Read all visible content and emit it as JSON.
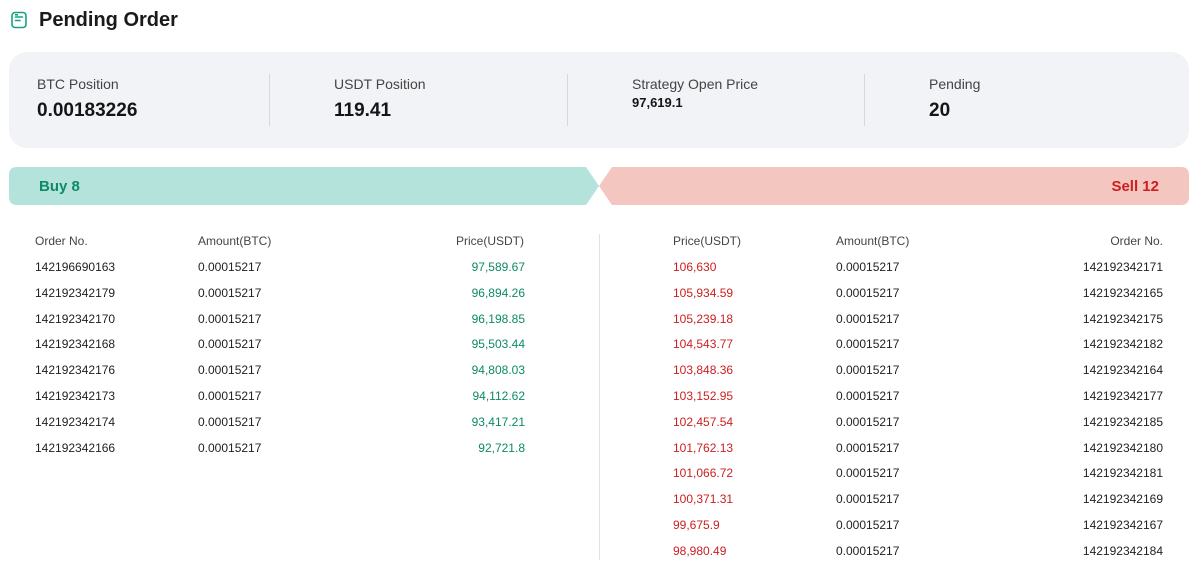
{
  "header": {
    "title": "Pending Order"
  },
  "stats": [
    {
      "label": "BTC Position",
      "value": "0.00183226"
    },
    {
      "label": "USDT Position",
      "value": "119.41"
    },
    {
      "label": "Strategy Open Price",
      "value": "97,619.1"
    },
    {
      "label": "Pending",
      "value": "20"
    }
  ],
  "buy": {
    "label": "Buy 8",
    "columns": [
      "Order No.",
      "Amount(BTC)",
      "Price(USDT)"
    ],
    "rows": [
      {
        "order": "142196690163",
        "amount": "0.00015217",
        "price": "97,589.67"
      },
      {
        "order": "142192342179",
        "amount": "0.00015217",
        "price": "96,894.26"
      },
      {
        "order": "142192342170",
        "amount": "0.00015217",
        "price": "96,198.85"
      },
      {
        "order": "142192342168",
        "amount": "0.00015217",
        "price": "95,503.44"
      },
      {
        "order": "142192342176",
        "amount": "0.00015217",
        "price": "94,808.03"
      },
      {
        "order": "142192342173",
        "amount": "0.00015217",
        "price": "94,112.62"
      },
      {
        "order": "142192342174",
        "amount": "0.00015217",
        "price": "93,417.21"
      },
      {
        "order": "142192342166",
        "amount": "0.00015217",
        "price": "92,721.8"
      }
    ]
  },
  "sell": {
    "label": "Sell 12",
    "columns": [
      "Price(USDT)",
      "Amount(BTC)",
      "Order No."
    ],
    "rows": [
      {
        "price": "106,630",
        "amount": "0.00015217",
        "order": "142192342171"
      },
      {
        "price": "105,934.59",
        "amount": "0.00015217",
        "order": "142192342165"
      },
      {
        "price": "105,239.18",
        "amount": "0.00015217",
        "order": "142192342175"
      },
      {
        "price": "104,543.77",
        "amount": "0.00015217",
        "order": "142192342182"
      },
      {
        "price": "103,848.36",
        "amount": "0.00015217",
        "order": "142192342164"
      },
      {
        "price": "103,152.95",
        "amount": "0.00015217",
        "order": "142192342177"
      },
      {
        "price": "102,457.54",
        "amount": "0.00015217",
        "order": "142192342185"
      },
      {
        "price": "101,762.13",
        "amount": "0.00015217",
        "order": "142192342180"
      },
      {
        "price": "101,066.72",
        "amount": "0.00015217",
        "order": "142192342181"
      },
      {
        "price": "100,371.31",
        "amount": "0.00015217",
        "order": "142192342169"
      },
      {
        "price": "99,675.9",
        "amount": "0.00015217",
        "order": "142192342167"
      },
      {
        "price": "98,980.49",
        "amount": "0.00015217",
        "order": "142192342184"
      }
    ]
  },
  "colors": {
    "buy_banner": "#b4e3db",
    "sell_banner": "#f4c6c0",
    "buy_text": "#0c8a67",
    "sell_text": "#cc1f1f",
    "icon": "#13a383"
  },
  "icons": {
    "header": "order-sheet-icon"
  }
}
